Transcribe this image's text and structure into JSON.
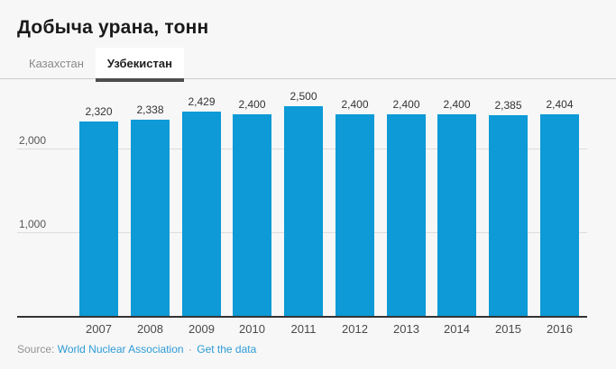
{
  "title": "Добыча урана, тонн",
  "tabs": [
    {
      "label": "Казахстан",
      "active": false
    },
    {
      "label": "Узбекистан",
      "active": true
    }
  ],
  "chart_data": {
    "type": "bar",
    "title": "Добыча урана, тонн",
    "series_name": "Узбекистан",
    "categories": [
      "2007",
      "2008",
      "2009",
      "2010",
      "2011",
      "2012",
      "2013",
      "2014",
      "2015",
      "2016"
    ],
    "values": [
      2320,
      2338,
      2429,
      2400,
      2500,
      2400,
      2400,
      2400,
      2385,
      2404
    ],
    "value_labels": [
      "2,320",
      "2,338",
      "2,429",
      "2,400",
      "2,500",
      "2,400",
      "2,400",
      "2,400",
      "2,385",
      "2,404"
    ],
    "xlabel": "",
    "ylabel": "",
    "ylim": [
      0,
      2800
    ],
    "yticks": [
      {
        "value": 1000,
        "label": "1,000"
      },
      {
        "value": 2000,
        "label": "2,000"
      }
    ],
    "grid": "horizontal",
    "legend": "none",
    "value_labels_position": "above-bars"
  },
  "source": {
    "label": "Source:",
    "link1": "World Nuclear Association",
    "separator": "·",
    "link2": "Get the data"
  },
  "colors": {
    "bar": "#0d9ad6",
    "link": "#2e9bd6",
    "page-bg": "#f7f7f7",
    "tab-active-underline": "#4d4d4d",
    "baseline": "#333333"
  }
}
